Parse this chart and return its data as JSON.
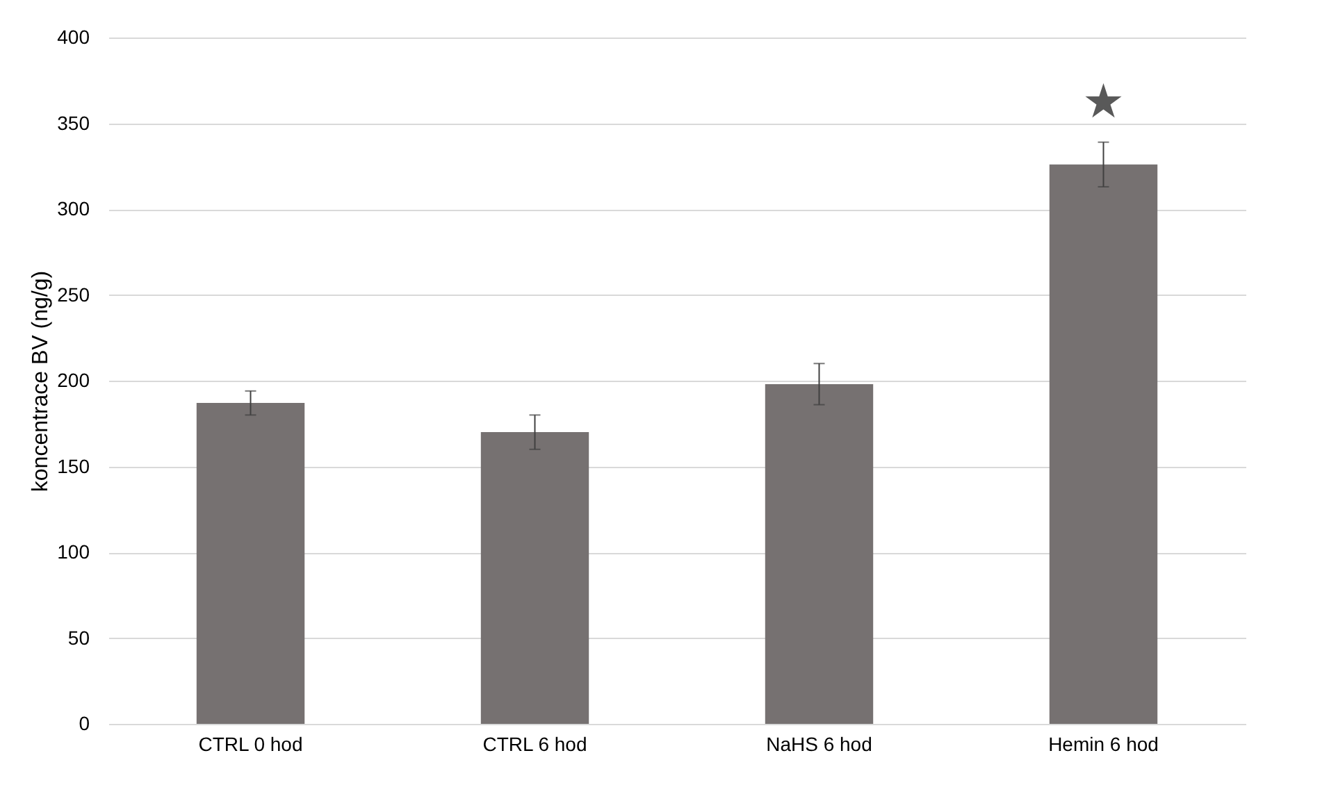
{
  "chart_data": {
    "type": "bar",
    "ylabel": "koncentrace BV (ng/g)",
    "categories": [
      "CTRL 0 hod",
      "CTRL 6 hod",
      "NaHS 6 hod",
      "Hemin 6 hod"
    ],
    "values": [
      187,
      170,
      198,
      326
    ],
    "errors": [
      7,
      10,
      12,
      13
    ],
    "color": "#767171",
    "ylim": [
      0,
      400
    ],
    "yticks": [
      0,
      50,
      100,
      150,
      200,
      250,
      300,
      350,
      400
    ],
    "grid": "y",
    "annotations": [
      "★"
    ]
  }
}
